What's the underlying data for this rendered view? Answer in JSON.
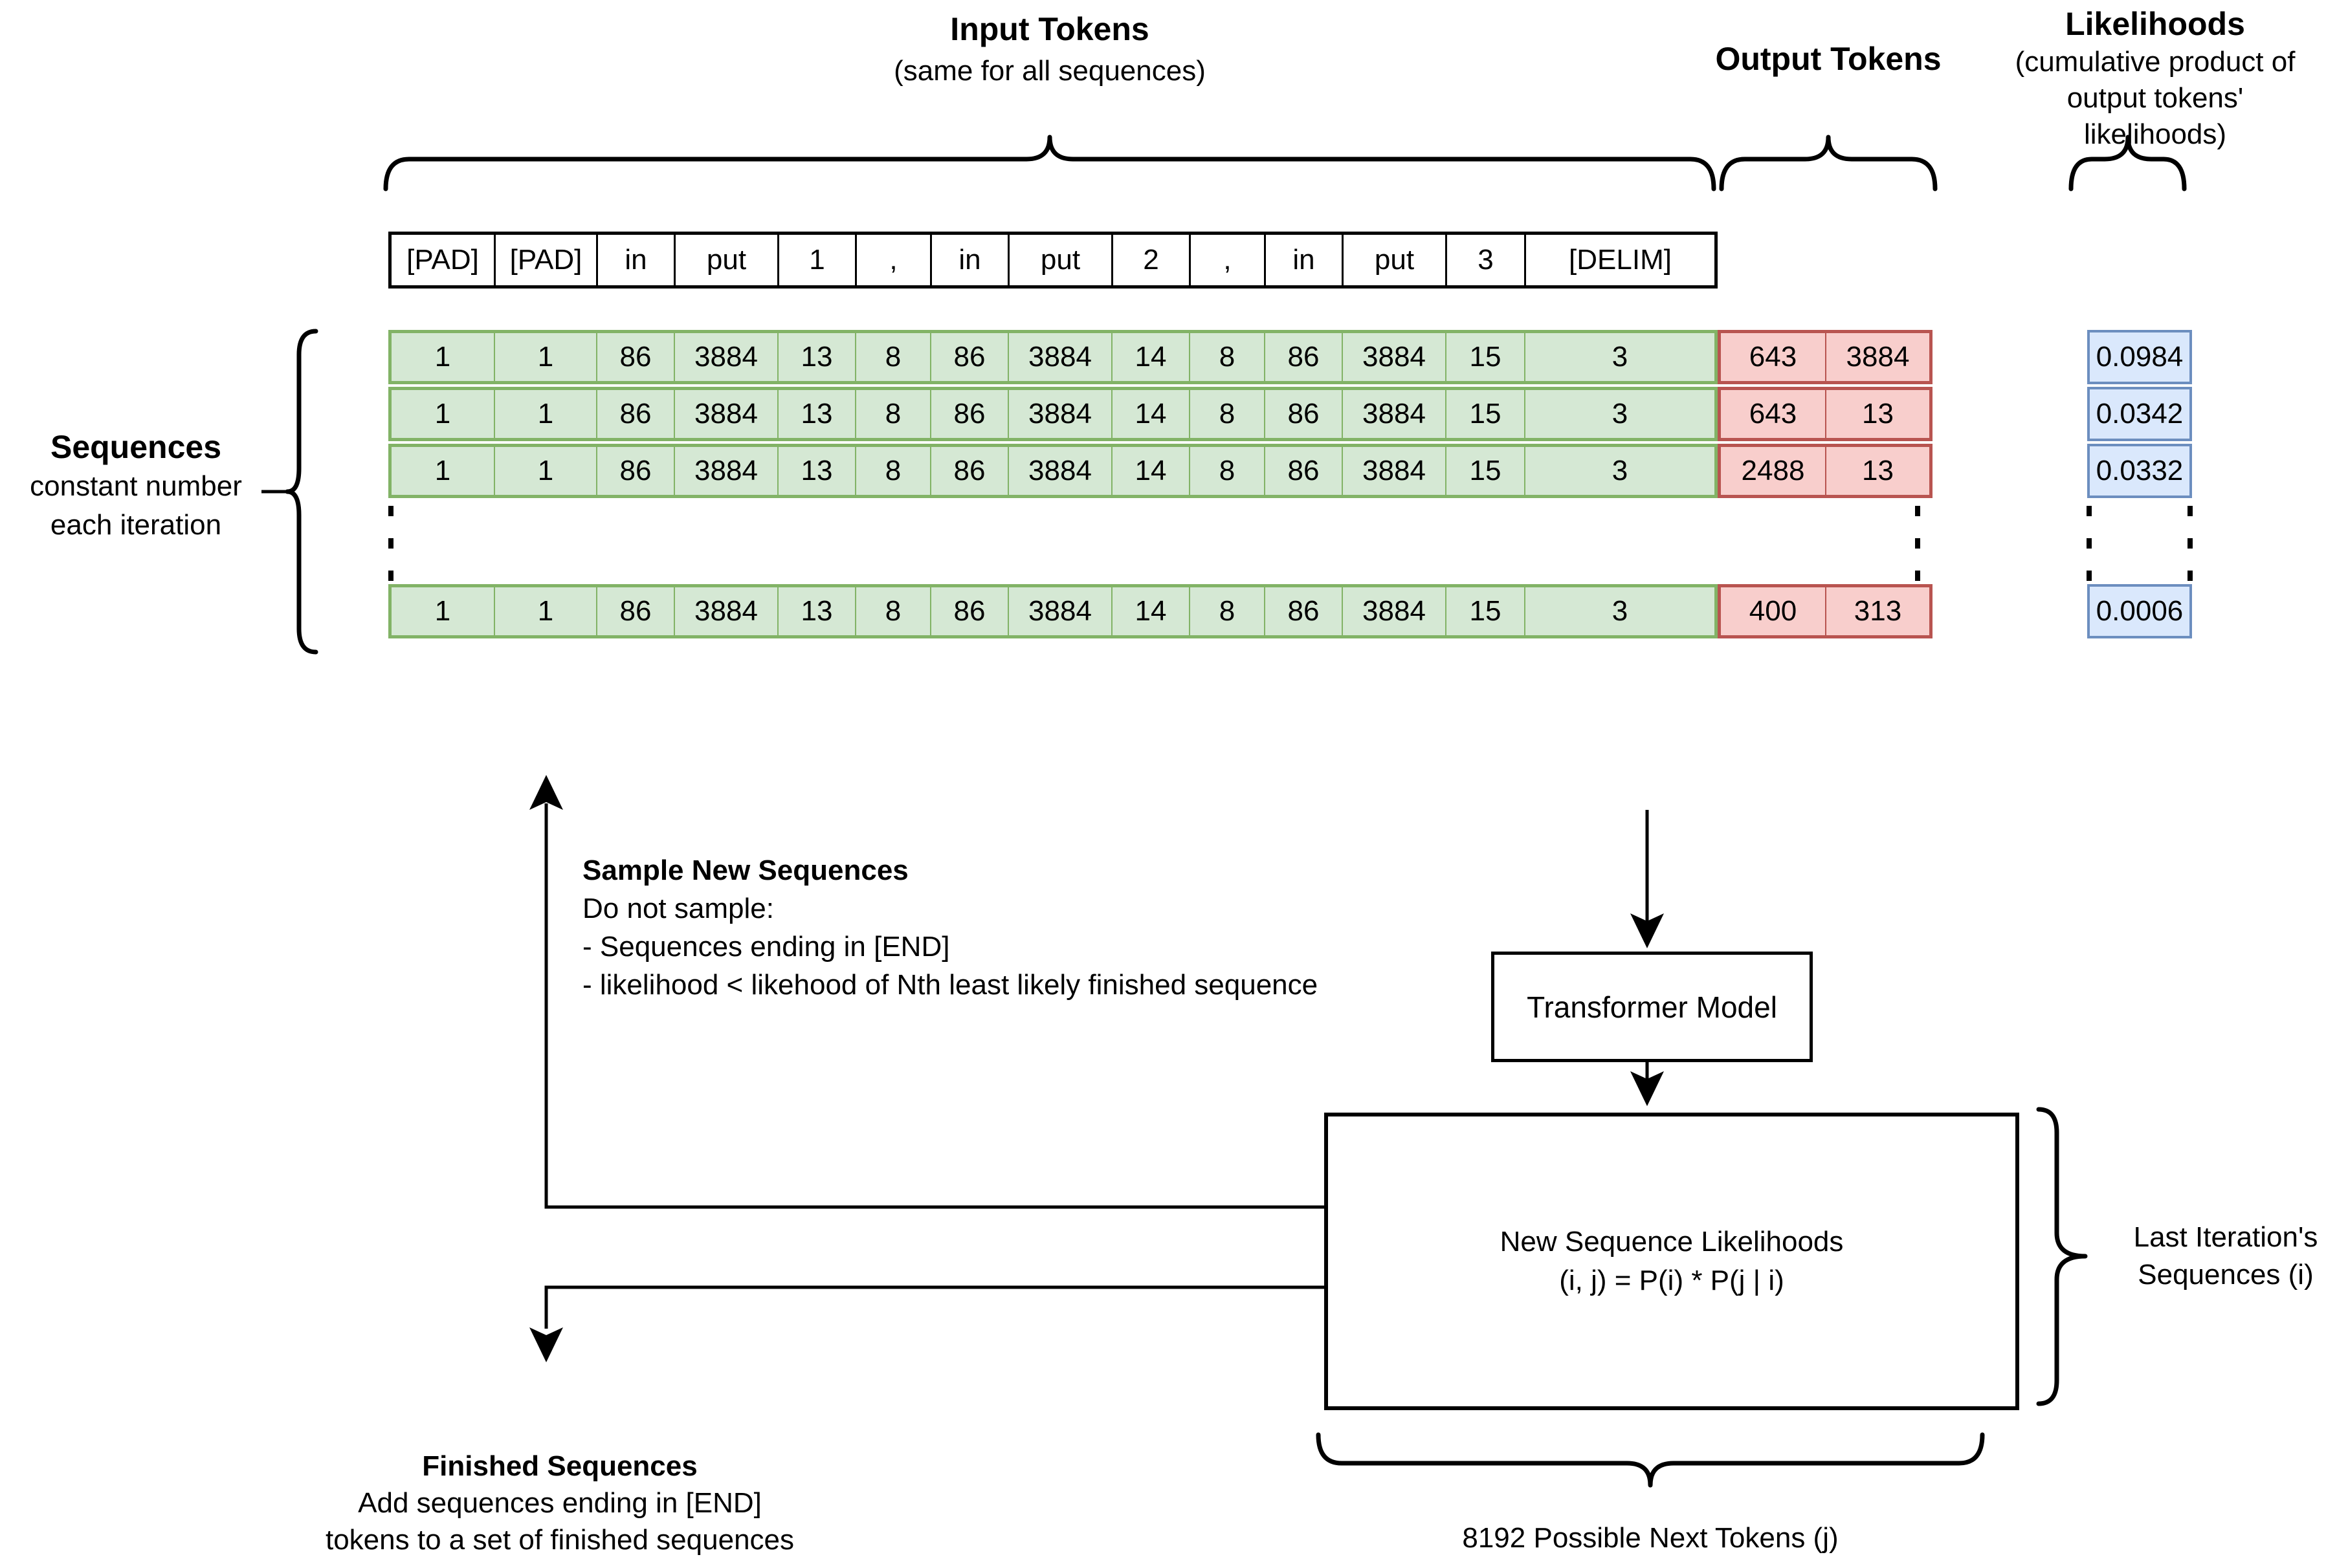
{
  "header": {
    "input_tokens_title": "Input Tokens",
    "input_tokens_sub": "(same for all sequences)",
    "output_tokens_title": "Output Tokens",
    "likelihoods_title": "Likelihoods",
    "likelihoods_sub1": "(cumulative product of",
    "likelihoods_sub2": "output tokens' likelihoods)"
  },
  "token_header": [
    "[PAD]",
    "[PAD]",
    "in",
    "put",
    "1",
    ",",
    "in",
    "put",
    "2",
    ",",
    "in",
    "put",
    "3",
    "[DELIM]"
  ],
  "sequences": {
    "label_title": "Sequences",
    "label_line2": "constant number",
    "label_line3": "each iteration",
    "input_tokens": [
      "1",
      "1",
      "86",
      "3884",
      "13",
      "8",
      "86",
      "3884",
      "14",
      "8",
      "86",
      "3884",
      "15",
      "3"
    ],
    "rows": [
      {
        "output_tokens": [
          "643",
          "3884"
        ],
        "likelihood": "0.0984"
      },
      {
        "output_tokens": [
          "643",
          "13"
        ],
        "likelihood": "0.0342"
      },
      {
        "output_tokens": [
          "2488",
          "13"
        ],
        "likelihood": "0.0332"
      },
      {
        "output_tokens": [
          "400",
          "313"
        ],
        "likelihood": "0.0006"
      }
    ]
  },
  "flow": {
    "sample_title": "Sample New Sequences",
    "sample_line1": "Do not sample:",
    "sample_line2": "- Sequences ending in [END]",
    "sample_line3": "- likelihood < likehood of Nth least likely finished sequence",
    "transformer_label": "Transformer Model",
    "new_seq_line1": "New Sequence Likelihoods",
    "new_seq_line2": "(i, j) = P(i) * P(j | i)",
    "last_iter_line1": "Last Iteration's",
    "last_iter_line2": "Sequences (i)",
    "possible_tokens_label": "8192 Possible Next Tokens (j)",
    "finished_title": "Finished Sequences",
    "finished_line1": "Add sequences ending in [END]",
    "finished_line2": "tokens to a set of finished sequences"
  },
  "colors": {
    "green_fill": "#d5e8d4",
    "green_border": "#82b366",
    "red_fill": "#f8cecc",
    "red_border": "#b85450",
    "blue_fill": "#dae8fc",
    "blue_border": "#6c8ebf",
    "line": "#000000"
  }
}
